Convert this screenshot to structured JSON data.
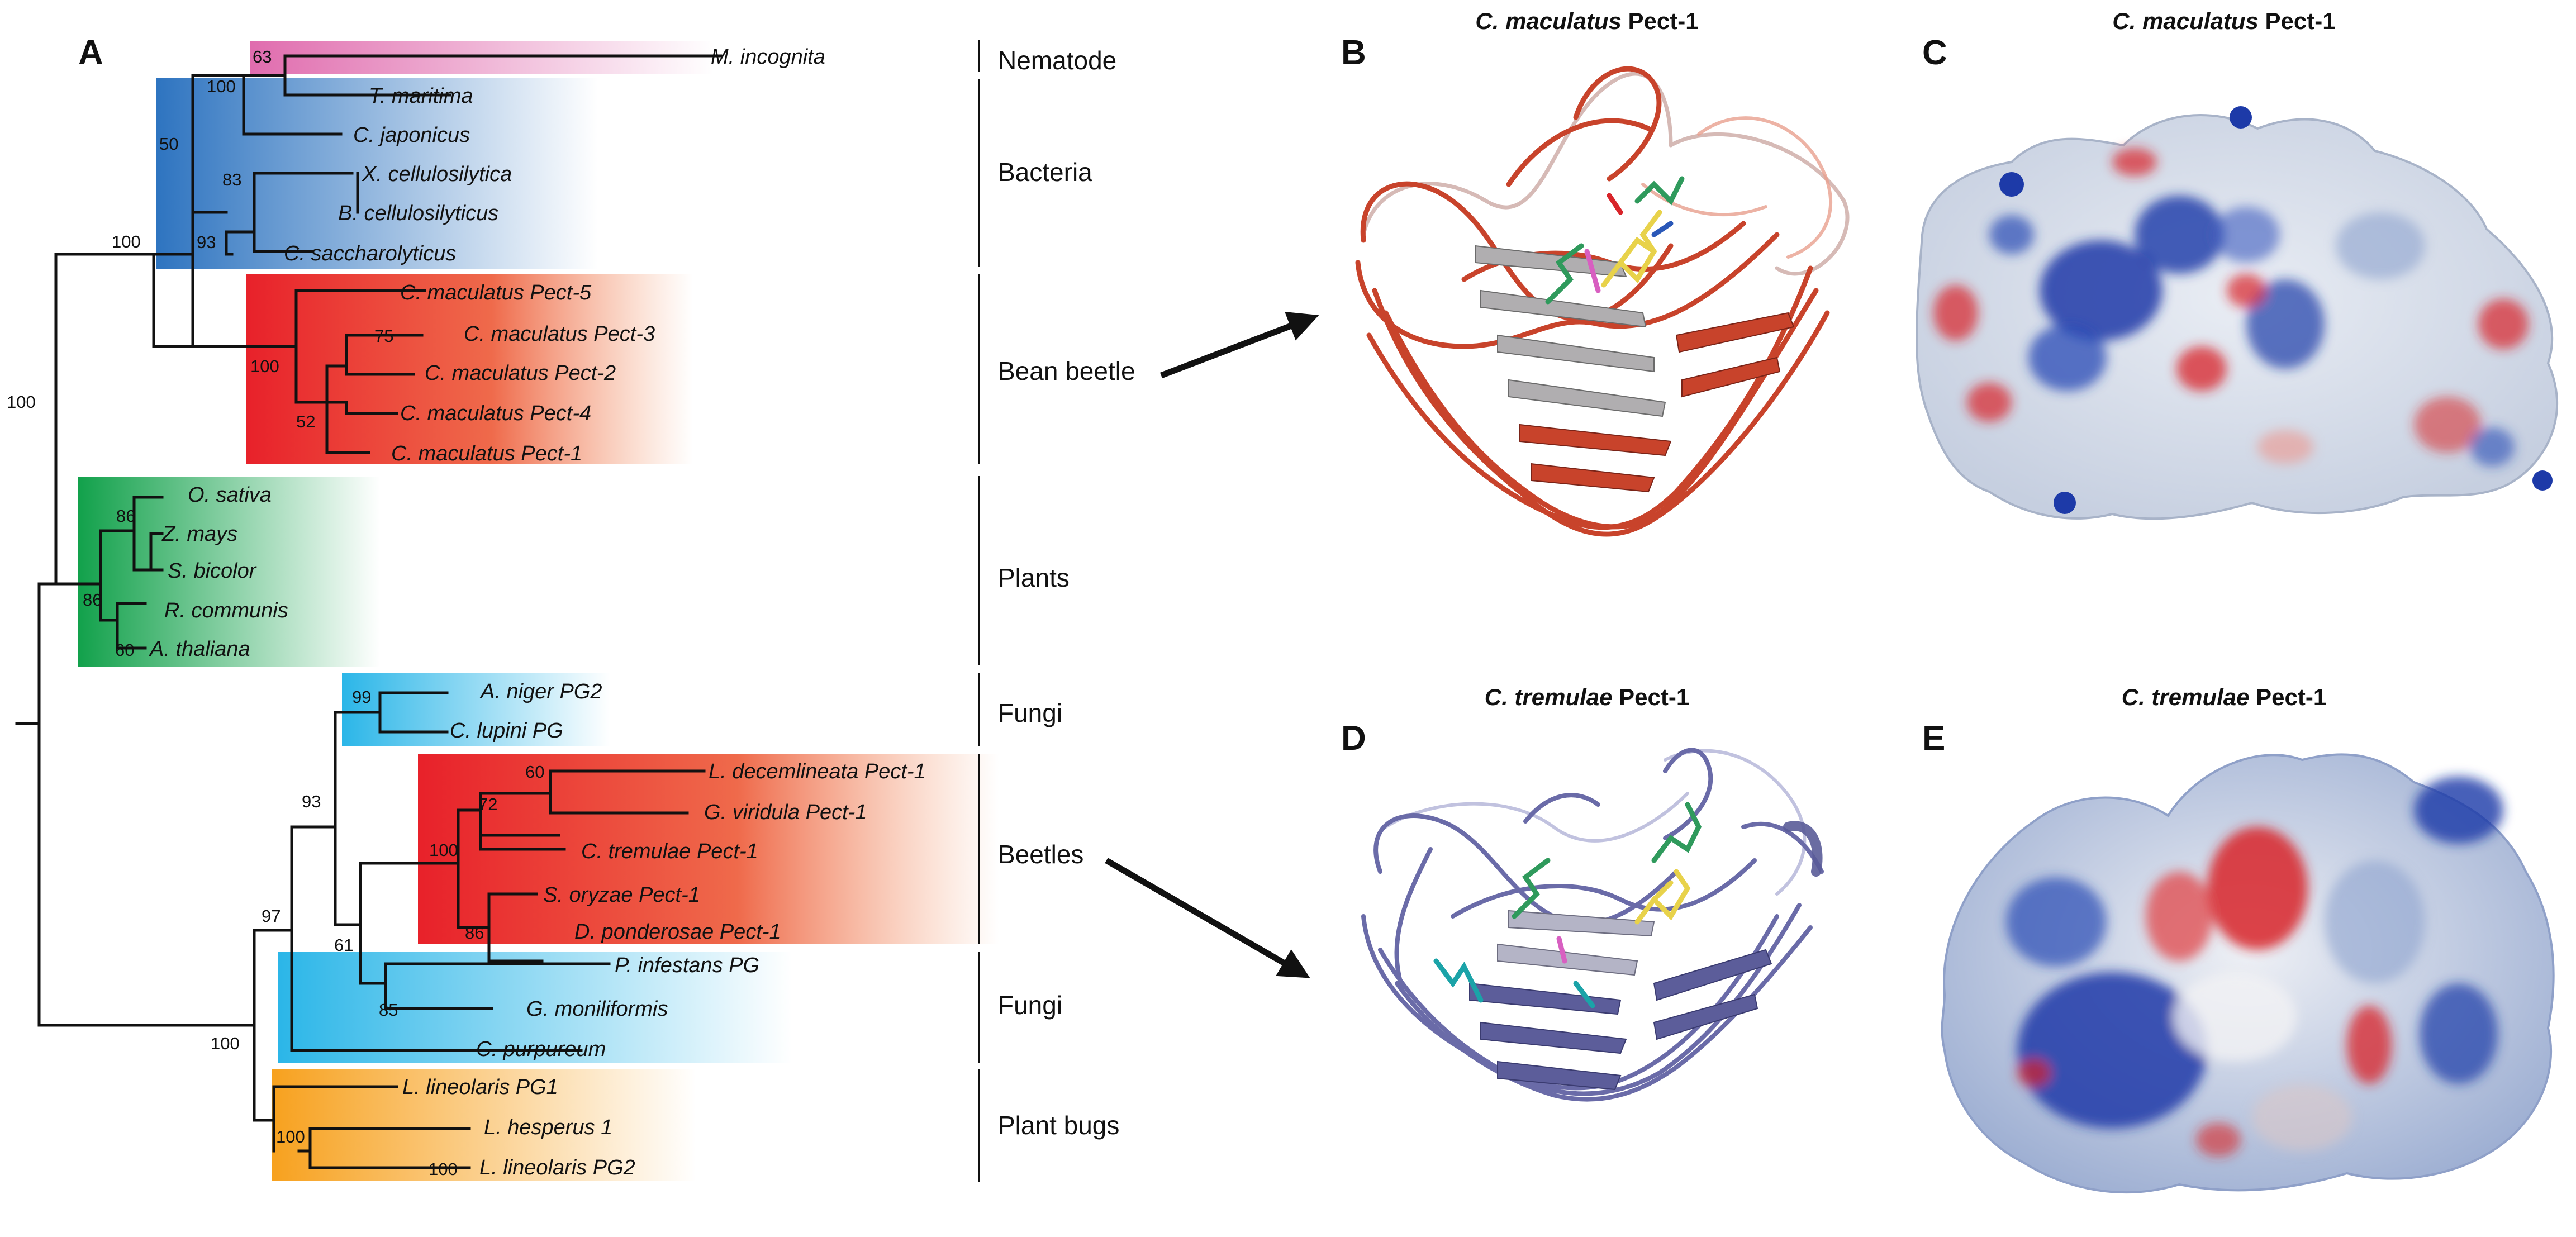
{
  "panels": {
    "a": "A",
    "b": "B",
    "c": "C",
    "d": "D",
    "e": "E"
  },
  "titles": {
    "b_species": "C. maculatus",
    "b_protein": " Pect-1",
    "c_species": "C. maculatus",
    "c_protein": " Pect-1",
    "d_species": "C. tremulae",
    "d_protein": " Pect-1",
    "e_species": "C. tremulae",
    "e_protein": " Pect-1"
  },
  "groups": {
    "nematode": "Nematode",
    "bacteria": "Bacteria",
    "bean_beetle": "Bean beetle",
    "plants": "Plants",
    "fungi_top": "Fungi",
    "beetles": "Beetles",
    "fungi_bottom": "Fungi",
    "plant_bugs": "Plant bugs"
  },
  "colors": {
    "nematode": "#e06cae",
    "bacteria": "#2e74c0",
    "bean_beetle": "#e8212a",
    "plants": "#12a14b",
    "fungi": "#2bb6e8",
    "beetles": "#e8212a",
    "plant_bugs": "#f7a11e",
    "ribbon_b": "#c8432b",
    "ribbon_d": "#6a6ba8",
    "surface_pos": "#1d3aa8",
    "surface_neg": "#d8242a"
  },
  "taxa": [
    "M. incognita",
    "T. maritima",
    "C. japonicus",
    "X. cellulosilytica",
    "B. cellulosilyticus",
    "C. saccharolyticus",
    "C. maculatus Pect-5",
    "C. maculatus Pect-3",
    "C. maculatus Pect-2",
    "C. maculatus Pect-4",
    "C. maculatus Pect-1",
    "O. sativa",
    "Z. mays",
    "S. bicolor",
    "R. communis",
    "A. thaliana",
    "A. niger PG2",
    "C. lupini PG",
    "L. decemlineata Pect-1",
    "G. viridula Pect-1",
    "C. tremulae Pect-1",
    "S. oryzae Pect-1",
    "D. ponderosae Pect-1",
    "P. infestans PG",
    "G. moniliformis",
    "C. purpureum",
    "L. lineolaris PG1",
    "L. hesperus 1",
    "L. lineolaris PG2"
  ],
  "bootstrap": [
    "63",
    "100",
    "50",
    "83",
    "93",
    "100",
    "75",
    "100",
    "52",
    "100",
    "86",
    "86",
    "60",
    "99",
    "93",
    "60",
    "72",
    "100",
    "86",
    "97",
    "61",
    "85",
    "100",
    "100",
    "100"
  ]
}
